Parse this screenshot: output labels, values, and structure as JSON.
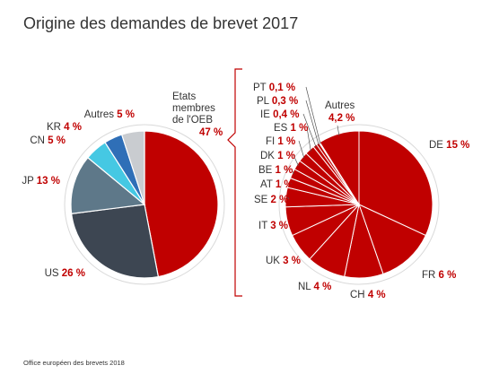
{
  "source": "Office européen des brevets 2018",
  "chart_data": [
    {
      "type": "pie",
      "title": "Origine des demandes de brevet 2017",
      "slices": [
        {
          "label": "Etats membres de l'OEB",
          "value": 47,
          "value_label": "47 %",
          "color": "#c00000"
        },
        {
          "label": "US",
          "value": 26,
          "value_label": "26 %",
          "color": "#3d4652"
        },
        {
          "label": "JP",
          "value": 13,
          "value_label": "13 %",
          "color": "#5e7889"
        },
        {
          "label": "CN",
          "value": 5,
          "value_label": "5 %",
          "color": "#45c8e3"
        },
        {
          "label": "KR",
          "value": 4,
          "value_label": "4 %",
          "color": "#2f6fb7"
        },
        {
          "label": "Autres",
          "value": 5,
          "value_label": "5 %",
          "color": "#c9ccd0"
        }
      ]
    },
    {
      "type": "pie",
      "slices": [
        {
          "label": "DE",
          "value": 15,
          "value_label": "15 %",
          "color": "#c00000"
        },
        {
          "label": "FR",
          "value": 6,
          "value_label": "6 %",
          "color": "#c00000"
        },
        {
          "label": "CH",
          "value": 4,
          "value_label": "4 %",
          "color": "#c00000"
        },
        {
          "label": "NL",
          "value": 4,
          "value_label": "4 %",
          "color": "#c00000"
        },
        {
          "label": "UK",
          "value": 3,
          "value_label": "3 %",
          "color": "#c00000"
        },
        {
          "label": "IT",
          "value": 3,
          "value_label": "3 %",
          "color": "#c00000"
        },
        {
          "label": "SE",
          "value": 2,
          "value_label": "2 %",
          "color": "#c00000"
        },
        {
          "label": "AT",
          "value": 1,
          "value_label": "1 %",
          "color": "#c00000"
        },
        {
          "label": "BE",
          "value": 1,
          "value_label": "1 %",
          "color": "#c00000"
        },
        {
          "label": "DK",
          "value": 1,
          "value_label": "1 %",
          "color": "#c00000"
        },
        {
          "label": "FI",
          "value": 1,
          "value_label": "1 %",
          "color": "#c00000"
        },
        {
          "label": "ES",
          "value": 1,
          "value_label": "1 %",
          "color": "#c00000"
        },
        {
          "label": "IE",
          "value": 0.4,
          "value_label": "0,4 %",
          "color": "#c00000"
        },
        {
          "label": "PL",
          "value": 0.3,
          "value_label": "0,3 %",
          "color": "#c00000"
        },
        {
          "label": "PT",
          "value": 0.1,
          "value_label": "0,1 %",
          "color": "#c00000"
        },
        {
          "label": "Autres",
          "value": 4.2,
          "value_label": "4,2 %",
          "color": "#c00000"
        }
      ]
    }
  ]
}
